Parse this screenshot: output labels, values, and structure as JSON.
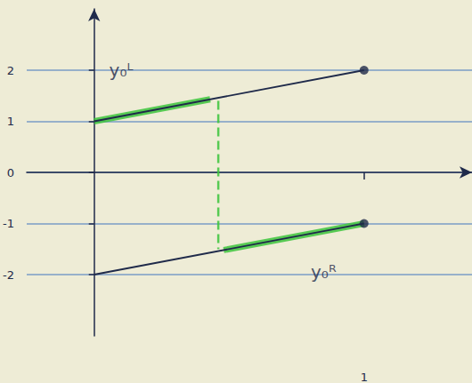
{
  "chart_data": {
    "type": "line",
    "xlim": [
      -0.25,
      1.4
    ],
    "ylim": [
      -3.2,
      3.2
    ],
    "xticks": [
      1
    ],
    "yticks": [
      -2,
      -1,
      0,
      1,
      2
    ],
    "grid": true,
    "series": [
      {
        "type": "line",
        "color": "#1f2a4a",
        "line_style": "solid",
        "marker": "none",
        "x": [
          0,
          1
        ],
        "values": [
          1,
          2
        ]
      },
      {
        "type": "line",
        "color": "#1f2a4a",
        "line_style": "solid",
        "marker": "none",
        "x": [
          0,
          1
        ],
        "values": [
          -2,
          -1
        ]
      },
      {
        "type": "line",
        "color": "#3cc43c",
        "line_style": "solid",
        "marker": "none",
        "x": [
          0,
          0.43
        ],
        "values": [
          1,
          1.43
        ]
      },
      {
        "type": "line",
        "color": "#3cc43c",
        "line_style": "solid",
        "marker": "none",
        "x": [
          0.48,
          1
        ],
        "values": [
          -1.52,
          -1
        ]
      },
      {
        "type": "line",
        "color": "#3cc43c",
        "line_style": "dashed",
        "marker": "none",
        "x": [
          0.46,
          0.46
        ],
        "values": [
          1.4,
          -1.5
        ]
      },
      {
        "type": "scatter",
        "color": "#1f2a4a",
        "marker": "circle",
        "x": [
          1,
          1
        ],
        "values": [
          2,
          -1
        ]
      }
    ],
    "annotations": [
      {
        "text": "y₀ᴸ",
        "x": 0.1,
        "y": 2.0
      },
      {
        "text": "y₀ᴿ",
        "x": 0.85,
        "y": -1.95
      }
    ]
  }
}
